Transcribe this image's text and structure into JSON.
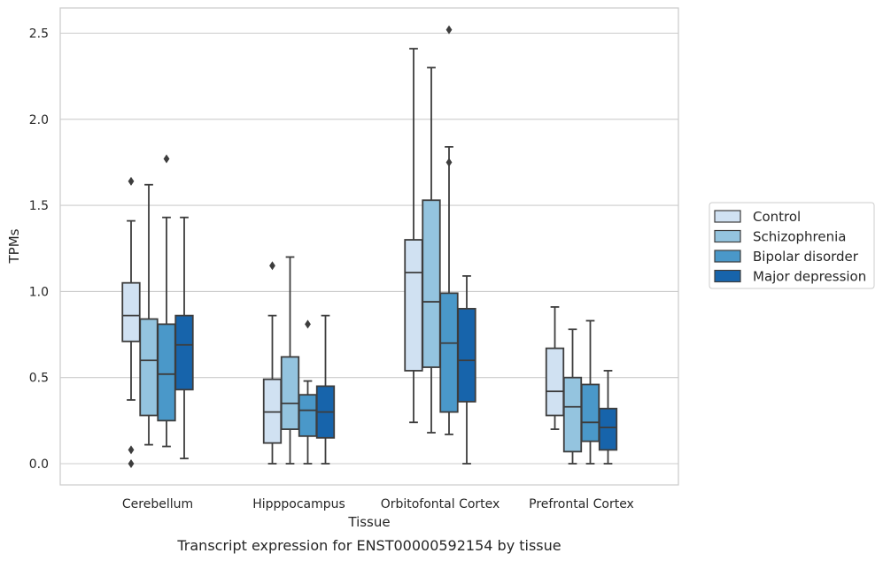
{
  "chart_data": {
    "type": "boxplot",
    "caption": "Transcript expression for ENST00000592154 by tissue",
    "xlabel": "Tissue",
    "ylabel": "TPMs",
    "ylim": [
      -0.12,
      2.63
    ],
    "yticks": [
      0.0,
      0.5,
      1.0,
      1.5,
      2.0,
      2.5
    ],
    "ytick_labels": [
      "0.0",
      "0.5",
      "1.0",
      "1.5",
      "2.0",
      "2.5"
    ],
    "grid": "horizontal",
    "legend_position": "right",
    "categories": [
      "Cerebellum",
      "Hipppocampus",
      "Orbitofontal Cortex",
      "Prefrontal Cortex"
    ],
    "series": [
      {
        "name": "Control",
        "color": "#d0e1f2",
        "boxes": [
          {
            "whislo": 0.37,
            "q1": 0.71,
            "med": 0.86,
            "q3": 1.05,
            "whishi": 1.41,
            "fliers": [
              1.64,
              0.08,
              0.0
            ]
          },
          {
            "whislo": 0.0,
            "q1": 0.12,
            "med": 0.3,
            "q3": 0.49,
            "whishi": 0.86,
            "fliers": [
              1.15
            ]
          },
          {
            "whislo": 0.24,
            "q1": 0.54,
            "med": 1.11,
            "q3": 1.3,
            "whishi": 2.41,
            "fliers": []
          },
          {
            "whislo": 0.2,
            "q1": 0.28,
            "med": 0.42,
            "q3": 0.67,
            "whishi": 0.91,
            "fliers": []
          }
        ]
      },
      {
        "name": "Schizophrenia",
        "color": "#94c4df",
        "boxes": [
          {
            "whislo": 0.11,
            "q1": 0.28,
            "med": 0.6,
            "q3": 0.84,
            "whishi": 1.62,
            "fliers": []
          },
          {
            "whislo": 0.0,
            "q1": 0.2,
            "med": 0.35,
            "q3": 0.62,
            "whishi": 1.2,
            "fliers": []
          },
          {
            "whislo": 0.18,
            "q1": 0.56,
            "med": 0.94,
            "q3": 1.53,
            "whishi": 2.3,
            "fliers": []
          },
          {
            "whislo": 0.0,
            "q1": 0.07,
            "med": 0.33,
            "q3": 0.5,
            "whishi": 0.78,
            "fliers": []
          }
        ]
      },
      {
        "name": "Bipolar disorder",
        "color": "#4a98c9",
        "boxes": [
          {
            "whislo": 0.1,
            "q1": 0.25,
            "med": 0.52,
            "q3": 0.81,
            "whishi": 1.43,
            "fliers": [
              1.77
            ]
          },
          {
            "whislo": 0.0,
            "q1": 0.16,
            "med": 0.31,
            "q3": 0.4,
            "whishi": 0.48,
            "fliers": [
              0.81
            ]
          },
          {
            "whislo": 0.17,
            "q1": 0.3,
            "med": 0.7,
            "q3": 0.99,
            "whishi": 1.84,
            "fliers": [
              1.75,
              2.52
            ]
          },
          {
            "whislo": 0.0,
            "q1": 0.13,
            "med": 0.24,
            "q3": 0.46,
            "whishi": 0.83,
            "fliers": []
          }
        ]
      },
      {
        "name": "Major depression",
        "color": "#1764ab",
        "boxes": [
          {
            "whislo": 0.03,
            "q1": 0.43,
            "med": 0.69,
            "q3": 0.86,
            "whishi": 1.43,
            "fliers": []
          },
          {
            "whislo": 0.0,
            "q1": 0.15,
            "med": 0.3,
            "q3": 0.45,
            "whishi": 0.86,
            "fliers": []
          },
          {
            "whislo": 0.0,
            "q1": 0.36,
            "med": 0.6,
            "q3": 0.9,
            "whishi": 1.09,
            "fliers": []
          },
          {
            "whislo": 0.0,
            "q1": 0.08,
            "med": 0.21,
            "q3": 0.32,
            "whishi": 0.54,
            "fliers": []
          }
        ]
      }
    ]
  }
}
